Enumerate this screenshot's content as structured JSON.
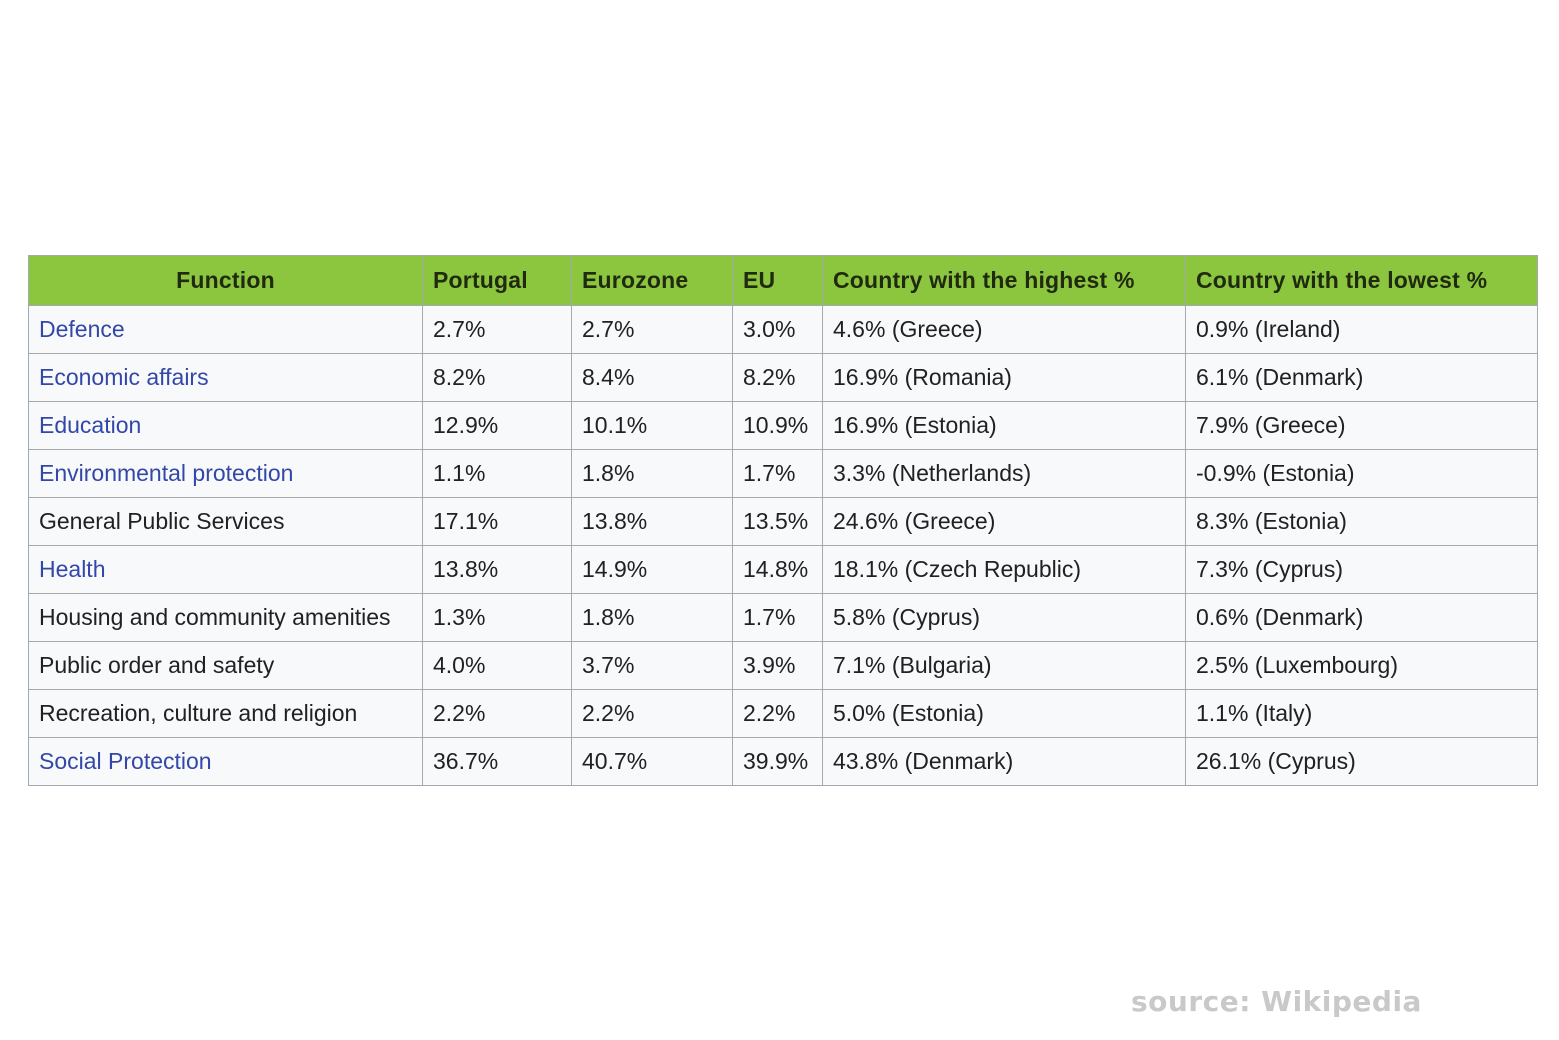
{
  "table": {
    "headers": {
      "function": "Function",
      "portugal": "Portugal",
      "eurozone": "Eurozone",
      "eu": "EU",
      "highest": "Country with the highest %",
      "lowest": "Country with the lowest %"
    },
    "rows": [
      {
        "function": "Defence",
        "linked": true,
        "portugal": "2.7%",
        "eurozone": "2.7%",
        "eu": "3.0%",
        "highest": "4.6% (Greece)",
        "lowest": "0.9% (Ireland)"
      },
      {
        "function": "Economic affairs",
        "linked": true,
        "portugal": "8.2%",
        "eurozone": "8.4%",
        "eu": "8.2%",
        "highest": "16.9% (Romania)",
        "lowest": "6.1% (Denmark)"
      },
      {
        "function": "Education",
        "linked": true,
        "portugal": "12.9%",
        "eurozone": "10.1%",
        "eu": "10.9%",
        "highest": "16.9% (Estonia)",
        "lowest": "7.9% (Greece)"
      },
      {
        "function": "Environmental protection",
        "linked": true,
        "portugal": "1.1%",
        "eurozone": "1.8%",
        "eu": "1.7%",
        "highest": "3.3% (Netherlands)",
        "lowest": "-0.9% (Estonia)"
      },
      {
        "function": "General Public Services",
        "linked": false,
        "portugal": "17.1%",
        "eurozone": "13.8%",
        "eu": "13.5%",
        "highest": "24.6% (Greece)",
        "lowest": "8.3% (Estonia)"
      },
      {
        "function": "Health",
        "linked": true,
        "portugal": "13.8%",
        "eurozone": "14.9%",
        "eu": "14.8%",
        "highest": "18.1% (Czech Republic)",
        "lowest": "7.3% (Cyprus)"
      },
      {
        "function": "Housing and community amenities",
        "linked": false,
        "portugal": "1.3%",
        "eurozone": "1.8%",
        "eu": "1.7%",
        "highest": "5.8% (Cyprus)",
        "lowest": "0.6% (Denmark)"
      },
      {
        "function": "Public order and safety",
        "linked": false,
        "portugal": "4.0%",
        "eurozone": "3.7%",
        "eu": "3.9%",
        "highest": "7.1% (Bulgaria)",
        "lowest": "2.5% (Luxembourg)"
      },
      {
        "function": "Recreation, culture and religion",
        "linked": false,
        "portugal": "2.2%",
        "eurozone": "2.2%",
        "eu": "2.2%",
        "highest": "5.0% (Estonia)",
        "lowest": "1.1% (Italy)"
      },
      {
        "function": "Social Protection",
        "linked": true,
        "portugal": "36.7%",
        "eurozone": "40.7%",
        "eu": "39.9%",
        "highest": "43.8% (Denmark)",
        "lowest": "26.1% (Cyprus)"
      }
    ]
  },
  "source": "source: Wikipedia",
  "colors": {
    "header_bg": "#8cc63e",
    "link": "#3347a8",
    "cell_bg": "#f8f9fa",
    "border": "#a2a9b1",
    "source_text": "#c9c9c9"
  }
}
